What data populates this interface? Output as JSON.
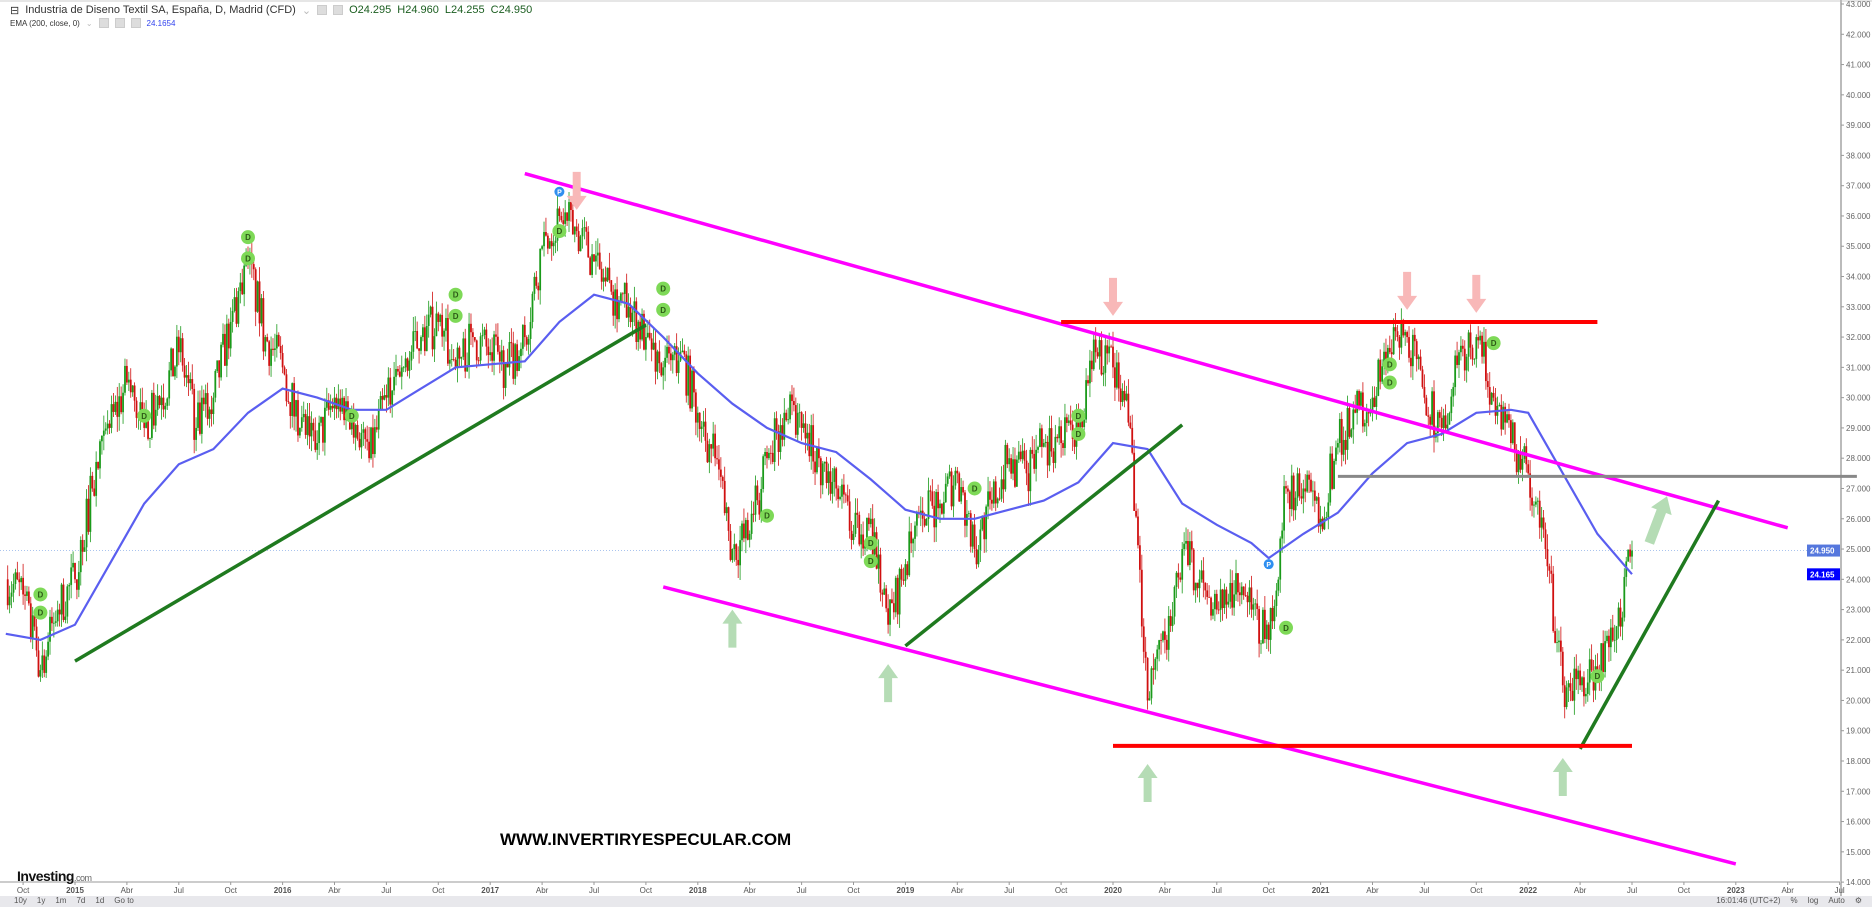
{
  "header": {
    "title": "Industria de Diseno Textil SA, España, D, Madrid (CFD)",
    "open": "O24.295",
    "high": "H24.960",
    "low": "L24.255",
    "close": "C24.950",
    "indicator": "EMA (200, close, 0)",
    "indicator_value": "24.1654"
  },
  "watermark": "WWW.INVERTIRYESPECULAR.COM",
  "logo": {
    "main": "Investing",
    "suffix": ".com"
  },
  "toolbar": {
    "ranges": [
      "10y",
      "1y",
      "1m",
      "7d",
      "1d",
      "Go to"
    ],
    "time": "16:01:46 (UTC+2)",
    "percent": "%",
    "log": "log",
    "auto": "Auto",
    "settings_icon": "gear-icon"
  },
  "colors": {
    "up": "#1a9a1a",
    "down": "#d01010",
    "ema": "#5a5ef0",
    "channel": "#ff00ff",
    "support": "#1f7a1f",
    "resistance": "#ff0000",
    "level": "#888888",
    "arrow_down": "#f8b8b8",
    "arrow_up": "#b5dcb5",
    "dividend": "#7ed957",
    "last_price": "#5577dd",
    "ema_label": "#0000ff"
  },
  "chart_data": {
    "type": "candlestick",
    "ylim": [
      14,
      43
    ],
    "y_ticks": [
      "14.000",
      "15.000",
      "16.000",
      "17.000",
      "18.000",
      "19.000",
      "20.000",
      "21.000",
      "22.000",
      "23.000",
      "24.000",
      "25.000",
      "26.000",
      "27.000",
      "28.000",
      "29.000",
      "30.000",
      "31.000",
      "32.000",
      "33.000",
      "34.000",
      "35.000",
      "36.000",
      "37.000",
      "38.000",
      "39.000",
      "40.000",
      "41.000",
      "42.000",
      "43.000"
    ],
    "x_ticks": [
      {
        "date": "2014-10",
        "label": "Oct"
      },
      {
        "date": "2015-01",
        "label": "2015"
      },
      {
        "date": "2015-04",
        "label": "Abr"
      },
      {
        "date": "2015-07",
        "label": "Jul"
      },
      {
        "date": "2015-10",
        "label": "Oct"
      },
      {
        "date": "2016-01",
        "label": "2016"
      },
      {
        "date": "2016-04",
        "label": "Abr"
      },
      {
        "date": "2016-07",
        "label": "Jul"
      },
      {
        "date": "2016-10",
        "label": "Oct"
      },
      {
        "date": "2017-01",
        "label": "2017"
      },
      {
        "date": "2017-04",
        "label": "Abr"
      },
      {
        "date": "2017-07",
        "label": "Jul"
      },
      {
        "date": "2017-10",
        "label": "Oct"
      },
      {
        "date": "2018-01",
        "label": "2018"
      },
      {
        "date": "2018-04",
        "label": "Abr"
      },
      {
        "date": "2018-07",
        "label": "Jul"
      },
      {
        "date": "2018-10",
        "label": "Oct"
      },
      {
        "date": "2019-01",
        "label": "2019"
      },
      {
        "date": "2019-04",
        "label": "Abr"
      },
      {
        "date": "2019-07",
        "label": "Jul"
      },
      {
        "date": "2019-10",
        "label": "Oct"
      },
      {
        "date": "2020-01",
        "label": "2020"
      },
      {
        "date": "2020-04",
        "label": "Abr"
      },
      {
        "date": "2020-07",
        "label": "Jul"
      },
      {
        "date": "2020-10",
        "label": "Oct"
      },
      {
        "date": "2021-01",
        "label": "2021"
      },
      {
        "date": "2021-04",
        "label": "Abr"
      },
      {
        "date": "2021-07",
        "label": "Jul"
      },
      {
        "date": "2021-10",
        "label": "Oct"
      },
      {
        "date": "2022-01",
        "label": "2022"
      },
      {
        "date": "2022-04",
        "label": "Abr"
      },
      {
        "date": "2022-07",
        "label": "Jul"
      },
      {
        "date": "2022-10",
        "label": "Oct"
      },
      {
        "date": "2023-01",
        "label": "2023"
      },
      {
        "date": "2023-04",
        "label": "Abr"
      },
      {
        "date": "2023-07",
        "label": "Jul"
      }
    ],
    "dates": [
      "2014-09",
      "2014-10",
      "2014-11",
      "2014-12",
      "2015-01",
      "2015-02",
      "2015-03",
      "2015-04",
      "2015-05",
      "2015-06",
      "2015-07",
      "2015-08",
      "2015-09",
      "2015-10",
      "2015-11",
      "2015-12",
      "2016-01",
      "2016-02",
      "2016-03",
      "2016-04",
      "2016-05",
      "2016-06",
      "2016-07",
      "2016-08",
      "2016-09",
      "2016-10",
      "2016-11",
      "2016-12",
      "2017-01",
      "2017-02",
      "2017-03",
      "2017-04",
      "2017-05",
      "2017-06",
      "2017-07",
      "2017-08",
      "2017-09",
      "2017-10",
      "2017-11",
      "2017-12",
      "2018-01",
      "2018-02",
      "2018-03",
      "2018-04",
      "2018-05",
      "2018-06",
      "2018-07",
      "2018-08",
      "2018-09",
      "2018-10",
      "2018-11",
      "2018-12",
      "2019-01",
      "2019-02",
      "2019-03",
      "2019-04",
      "2019-05",
      "2019-06",
      "2019-07",
      "2019-08",
      "2019-09",
      "2019-10",
      "2019-11",
      "2019-12",
      "2020-01",
      "2020-02",
      "2020-03",
      "2020-04",
      "2020-05",
      "2020-06",
      "2020-07",
      "2020-08",
      "2020-09",
      "2020-10",
      "2020-11",
      "2020-12",
      "2021-01",
      "2021-02",
      "2021-03",
      "2021-04",
      "2021-05",
      "2021-06",
      "2021-07",
      "2021-08",
      "2021-09",
      "2021-10",
      "2021-11",
      "2021-12",
      "2022-01",
      "2022-02",
      "2022-03",
      "2022-04",
      "2022-05",
      "2022-06",
      "2022-07"
    ],
    "close": [
      24,
      23.5,
      21,
      23,
      24,
      27,
      29,
      30.5,
      29,
      30,
      31.5,
      29,
      30,
      32.5,
      34.5,
      32,
      31,
      29,
      28.5,
      30,
      29.5,
      28,
      30,
      31,
      32,
      32.5,
      31,
      32,
      31.5,
      31,
      32,
      35,
      36,
      35.5,
      34.5,
      33.5,
      33,
      32,
      31,
      31.5,
      29.5,
      28,
      25,
      25.5,
      28,
      29.5,
      29,
      28,
      27,
      25.5,
      26,
      22.5,
      24.5,
      26,
      26.5,
      27.5,
      25,
      26.5,
      28,
      27.5,
      28.5,
      28.5,
      29,
      31.5,
      31,
      29,
      20,
      22,
      25,
      24,
      23,
      23.5,
      23,
      22,
      27,
      27,
      26,
      28.5,
      29.5,
      30,
      31.5,
      32,
      30,
      29,
      31.5,
      32,
      30,
      28.5,
      27.5,
      25,
      20.5,
      20.5,
      21,
      22,
      24.95
    ],
    "ema": {
      "name": "EMA (200, close, 0)",
      "dates": [
        "2014-09",
        "2014-11",
        "2015-01",
        "2015-03",
        "2015-05",
        "2015-07",
        "2015-09",
        "2015-11",
        "2016-01",
        "2016-03",
        "2016-05",
        "2016-07",
        "2016-09",
        "2016-11",
        "2017-01",
        "2017-03",
        "2017-05",
        "2017-07",
        "2017-09",
        "2017-11",
        "2018-01",
        "2018-03",
        "2018-05",
        "2018-07",
        "2018-09",
        "2018-11",
        "2019-01",
        "2019-03",
        "2019-05",
        "2019-07",
        "2019-09",
        "2019-11",
        "2020-01",
        "2020-03",
        "2020-05",
        "2020-07",
        "2020-09",
        "2020-10",
        "2020-12",
        "2021-02",
        "2021-04",
        "2021-06",
        "2021-08",
        "2021-10",
        "2021-12",
        "2022-01",
        "2022-03",
        "2022-05",
        "2022-07"
      ],
      "values": [
        22.2,
        22,
        22.5,
        24.5,
        26.5,
        27.8,
        28.3,
        29.5,
        30.3,
        30,
        29.6,
        29.6,
        30.3,
        31,
        31.1,
        31.2,
        32.5,
        33.4,
        33.1,
        32,
        30.8,
        29.8,
        29,
        28.5,
        28.2,
        27.3,
        26.3,
        26,
        26,
        26.3,
        26.6,
        27.2,
        28.5,
        28.3,
        26.5,
        25.8,
        25.2,
        24.7,
        25.5,
        26.2,
        27.5,
        28.5,
        28.8,
        29.5,
        29.6,
        29.5,
        27.5,
        25.5,
        24.17
      ]
    },
    "last_price": {
      "value": 24.95,
      "label": "24.950"
    },
    "ema_last": {
      "value": 24.165,
      "label": "24.165"
    },
    "trendlines": [
      {
        "kind": "channel-upper",
        "from": [
          "2017-03",
          37.4
        ],
        "to": [
          "2023-04",
          25.7
        ]
      },
      {
        "kind": "channel-lower",
        "from": [
          "2017-11",
          23.75
        ],
        "to": [
          "2023-01",
          14.6
        ]
      },
      {
        "kind": "support",
        "from": [
          "2015-01",
          21.3
        ],
        "to": [
          "2017-10",
          32.4
        ]
      },
      {
        "kind": "support",
        "from": [
          "2019-01",
          21.8
        ],
        "to": [
          "2020-05",
          29.1
        ]
      },
      {
        "kind": "support",
        "from": [
          "2022-04",
          18.4
        ],
        "to": [
          "2022-12",
          26.6
        ]
      },
      {
        "kind": "resistance",
        "from": [
          "2019-10",
          32.5
        ],
        "to": [
          "2022-05",
          32.5
        ]
      },
      {
        "kind": "resistance",
        "from": [
          "2020-01",
          18.5
        ],
        "to": [
          "2022-07",
          18.5
        ]
      },
      {
        "kind": "level",
        "from": [
          "2021-02",
          27.4
        ],
        "to": [
          "2023-08",
          27.4
        ]
      }
    ],
    "arrows": [
      {
        "dir": "down",
        "date": "2017-06",
        "price": 36.2
      },
      {
        "dir": "down",
        "date": "2020-01",
        "price": 32.7
      },
      {
        "dir": "down",
        "date": "2021-06",
        "price": 32.9
      },
      {
        "dir": "down",
        "date": "2021-10",
        "price": 32.8
      },
      {
        "dir": "up",
        "date": "2018-03",
        "price": 23.0
      },
      {
        "dir": "up",
        "date": "2018-12",
        "price": 21.2
      },
      {
        "dir": "up",
        "date": "2020-03",
        "price": 17.9
      },
      {
        "dir": "up",
        "date": "2022-03",
        "price": 18.1
      },
      {
        "dir": "up-right",
        "date": "2022-08",
        "price": 25.2
      }
    ],
    "markers": [
      {
        "label": "D",
        "date": "2014-11",
        "price": 23.5
      },
      {
        "label": "D",
        "date": "2014-11",
        "price": 22.9
      },
      {
        "label": "D",
        "date": "2015-11",
        "price": 35.3
      },
      {
        "label": "D",
        "date": "2015-11",
        "price": 34.6
      },
      {
        "label": "D",
        "date": "2015-05",
        "price": 29.4
      },
      {
        "label": "D",
        "date": "2016-05",
        "price": 29.4
      },
      {
        "label": "D",
        "date": "2016-11",
        "price": 33.4
      },
      {
        "label": "D",
        "date": "2016-11",
        "price": 32.7
      },
      {
        "label": "D",
        "date": "2017-05",
        "price": 35.5
      },
      {
        "label": "D",
        "date": "2017-11",
        "price": 33.6
      },
      {
        "label": "D",
        "date": "2017-11",
        "price": 32.9
      },
      {
        "label": "D",
        "date": "2018-05",
        "price": 26.1
      },
      {
        "label": "D",
        "date": "2018-11",
        "price": 25.2
      },
      {
        "label": "D",
        "date": "2018-11",
        "price": 24.6
      },
      {
        "label": "D",
        "date": "2019-05",
        "price": 27.0
      },
      {
        "label": "D",
        "date": "2019-11",
        "price": 29.4
      },
      {
        "label": "D",
        "date": "2019-11",
        "price": 28.8
      },
      {
        "label": "D",
        "date": "2020-11",
        "price": 22.4
      },
      {
        "label": "D",
        "date": "2021-05",
        "price": 31.1
      },
      {
        "label": "D",
        "date": "2021-05",
        "price": 30.5
      },
      {
        "label": "D",
        "date": "2021-11",
        "price": 31.8
      },
      {
        "label": "D",
        "date": "2022-05",
        "price": 20.8
      },
      {
        "label": "P",
        "date": "2017-05",
        "price": 36.8
      },
      {
        "label": "P",
        "date": "2020-10",
        "price": 24.5
      }
    ]
  }
}
